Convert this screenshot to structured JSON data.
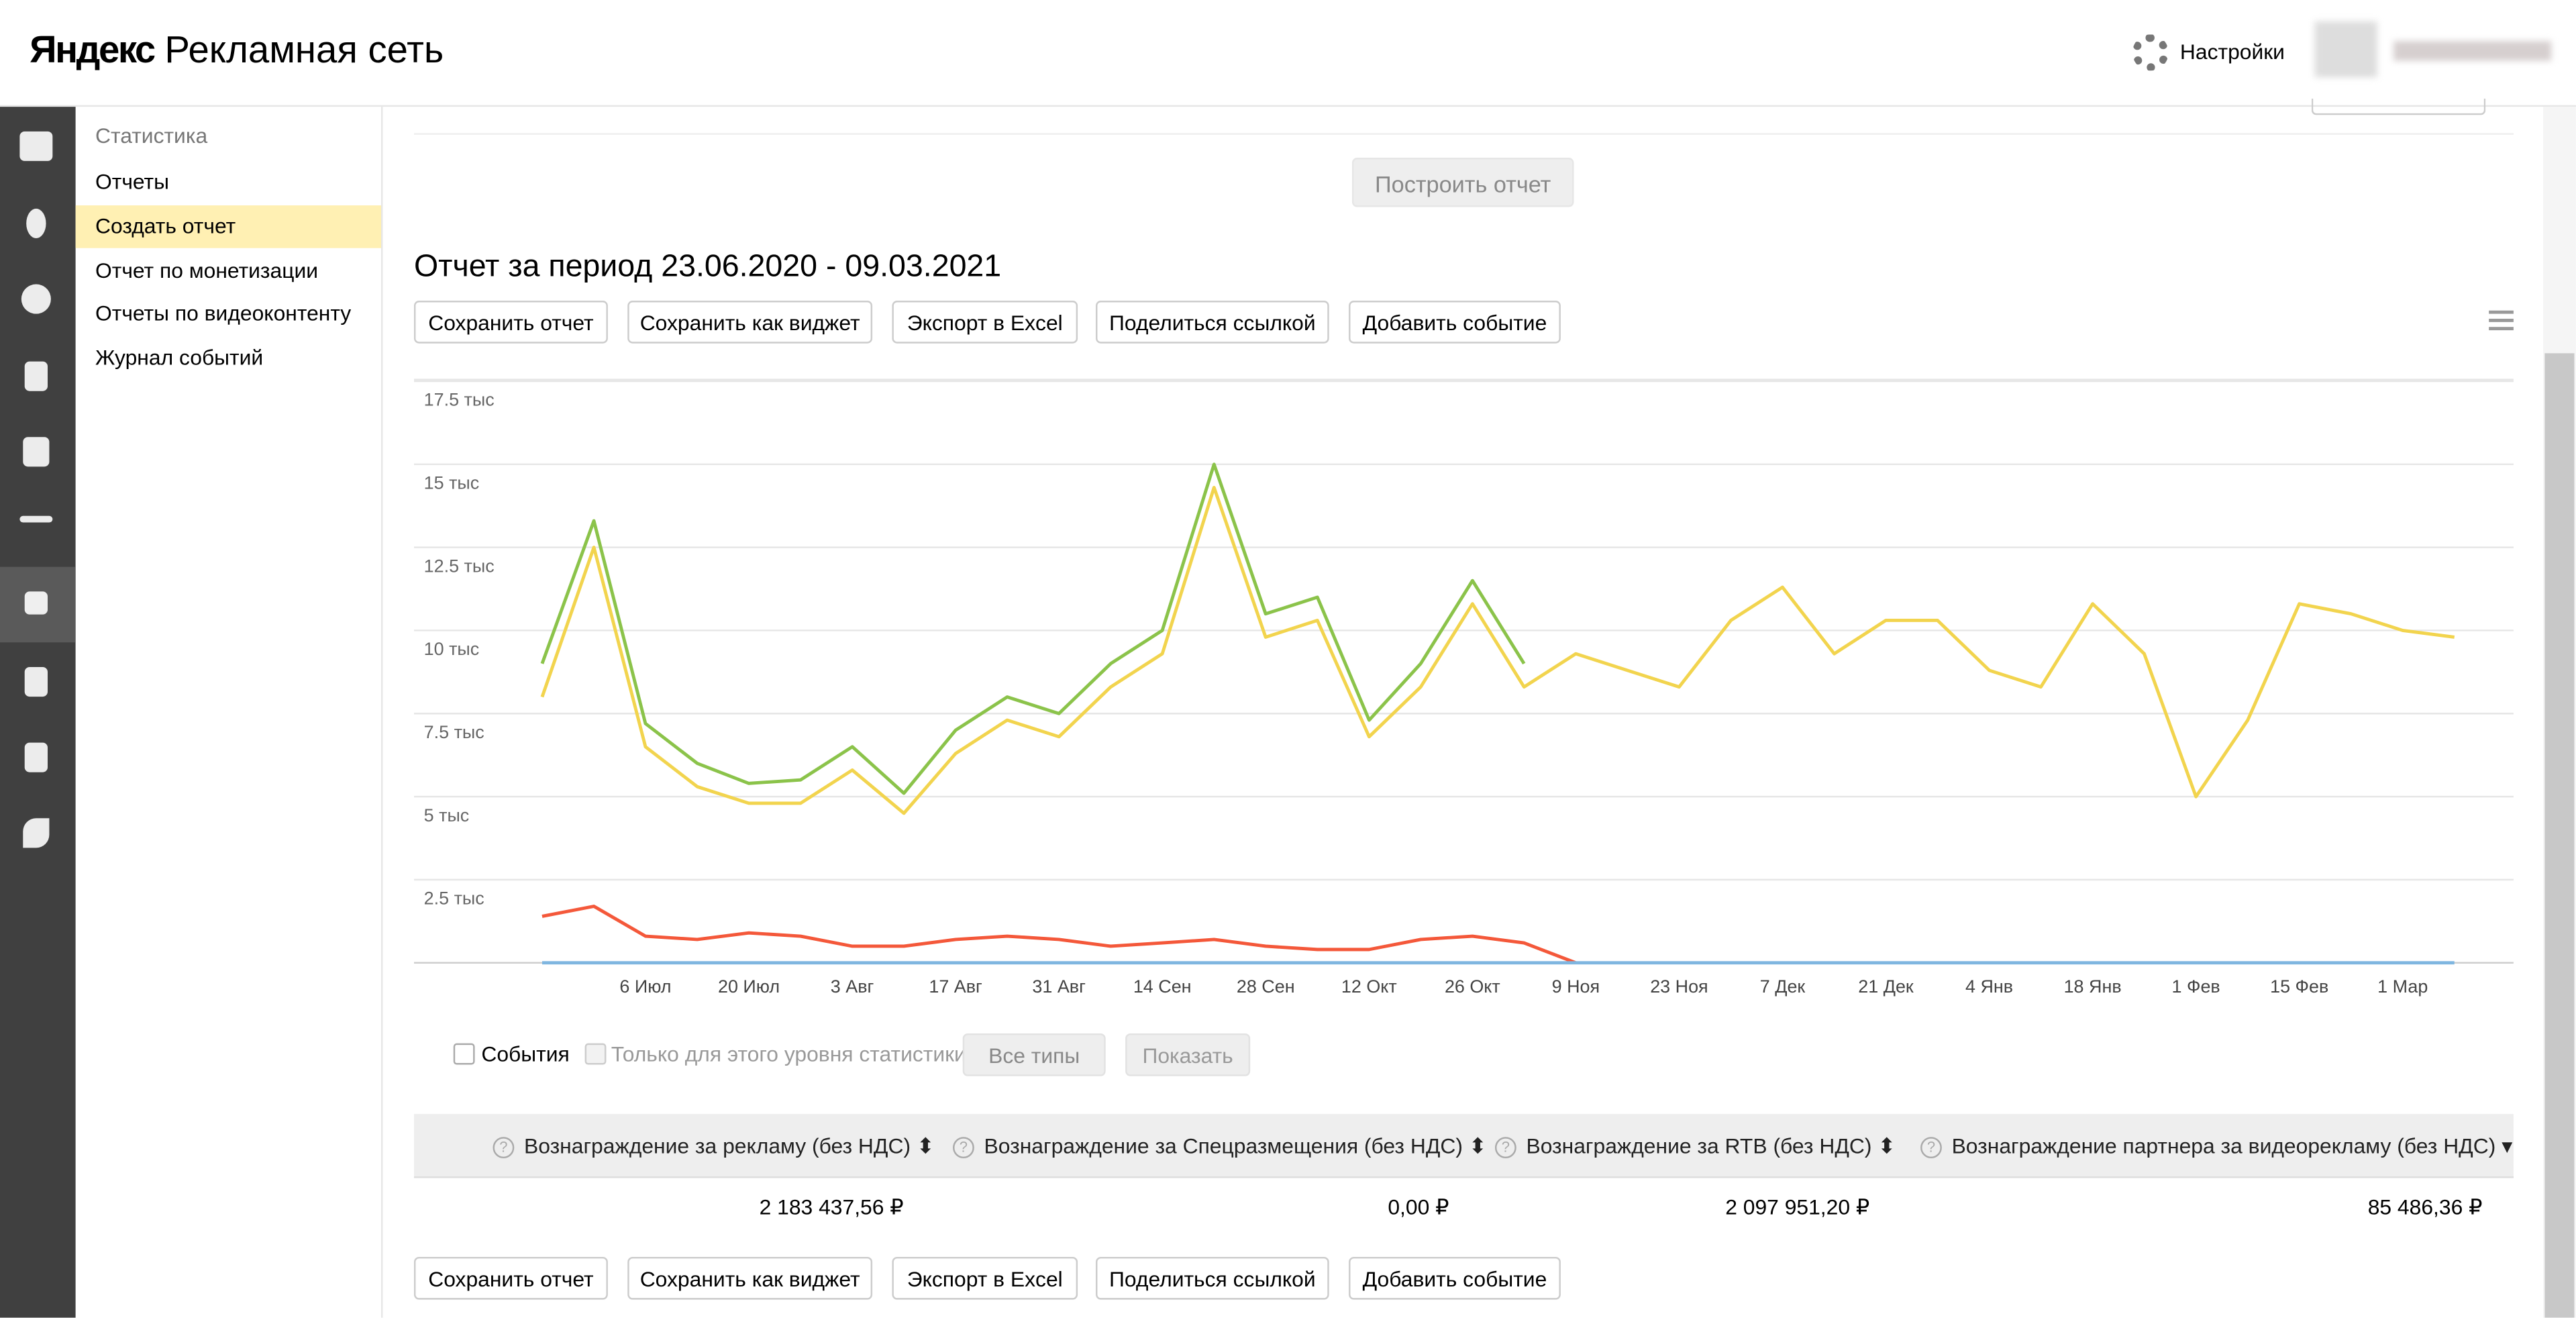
{
  "header": {
    "logo": "Яндекс",
    "product": "Рекламная сеть",
    "settings": "Настройки"
  },
  "sidebar": {
    "title": "Статистика",
    "items": [
      "Отчеты",
      "Создать отчет",
      "Отчет по монетизации",
      "Отчеты по видеоконтенту",
      "Журнал событий"
    ]
  },
  "build_button": "Построить отчет",
  "report_title": "Отчет за период 23.06.2020 - 09.03.2021",
  "actions": [
    "Сохранить отчет",
    "Сохранить как виджет",
    "Экспорт в Excel",
    "Поделиться ссылкой",
    "Добавить событие"
  ],
  "chart_data": {
    "type": "line",
    "categories": [
      null,
      null,
      "6 Июл",
      null,
      "20 Июл",
      null,
      "3 Авг",
      null,
      "17 Авг",
      null,
      "31 Авг",
      null,
      "14 Сен",
      null,
      "28 Сен",
      null,
      "12 Окт",
      null,
      "26 Окт",
      null,
      "9 Ноя",
      null,
      "23 Ноя",
      null,
      "7 Дек",
      null,
      "21 Дек",
      null,
      "4 Янв",
      null,
      "18 Янв",
      null,
      "1 Фев",
      null,
      "15 Фев",
      null,
      "1 Мар",
      null
    ],
    "series": [
      {
        "color": "#8bc34a",
        "values": [
          9000,
          13300,
          7200,
          6000,
          5400,
          5500,
          6500,
          5100,
          7000,
          8000,
          7500,
          9000,
          10000,
          15000,
          10500,
          11000,
          7300,
          9000,
          11500,
          9000,
          null,
          null,
          null,
          null,
          null,
          null,
          null,
          null,
          null,
          null,
          null,
          null,
          null,
          null,
          null,
          null,
          null,
          null
        ]
      },
      {
        "color": "#f2d44e",
        "values": [
          8000,
          12500,
          6500,
          5300,
          4800,
          4800,
          5800,
          4500,
          6300,
          7300,
          6800,
          8300,
          9300,
          14300,
          9800,
          10300,
          6800,
          8300,
          10800,
          8300,
          9300,
          8800,
          8300,
          10300,
          11300,
          9300,
          10300,
          10300,
          8800,
          8300,
          10800,
          9300,
          5000,
          7300,
          10800,
          10500,
          10000,
          9800
        ]
      },
      {
        "color": "#f4583a",
        "values": [
          1400,
          1700,
          800,
          700,
          900,
          800,
          500,
          500,
          700,
          800,
          700,
          500,
          600,
          700,
          500,
          400,
          400,
          700,
          800,
          600,
          0,
          null,
          null,
          null,
          null,
          null,
          null,
          null,
          null,
          null,
          null,
          null,
          null,
          null,
          null,
          null,
          null,
          null
        ]
      },
      {
        "color": "#7fb6e0",
        "values": [
          0,
          0,
          0,
          0,
          0,
          0,
          0,
          0,
          0,
          0,
          0,
          0,
          0,
          0,
          0,
          0,
          0,
          0,
          0,
          0,
          0,
          0,
          0,
          0,
          0,
          0,
          0,
          0,
          0,
          0,
          0,
          0,
          0,
          0,
          0,
          0,
          0,
          0
        ]
      }
    ],
    "ylim": [
      0,
      17500
    ],
    "yticks": [
      {
        "value": 2500,
        "label": "2.5 тыс"
      },
      {
        "value": 5000,
        "label": "5 тыс"
      },
      {
        "value": 7500,
        "label": "7.5 тыс"
      },
      {
        "value": 10000,
        "label": "10 тыс"
      },
      {
        "value": 12500,
        "label": "12.5 тыс"
      },
      {
        "value": 15000,
        "label": "15 тыс"
      },
      {
        "value": 17500,
        "label": "17.5 тыс"
      }
    ],
    "grid": true
  },
  "filters": {
    "events": "События",
    "level_only": "Только для этого уровня статистики",
    "types": "Все типы",
    "show": "Показать"
  },
  "table": {
    "columns": [
      "Вознаграждение за рекламу (без НДС)",
      "Вознаграждение за Спецразмещения (без НДС)",
      "Вознаграждение за RTB (без НДС)",
      "Вознаграждение партнера за видеорекламу (без НДС)"
    ],
    "rows": [
      [
        "2 183 437,56 ₽",
        "0,00 ₽",
        "2 097 951,20 ₽",
        "85 486,36 ₽"
      ]
    ]
  }
}
